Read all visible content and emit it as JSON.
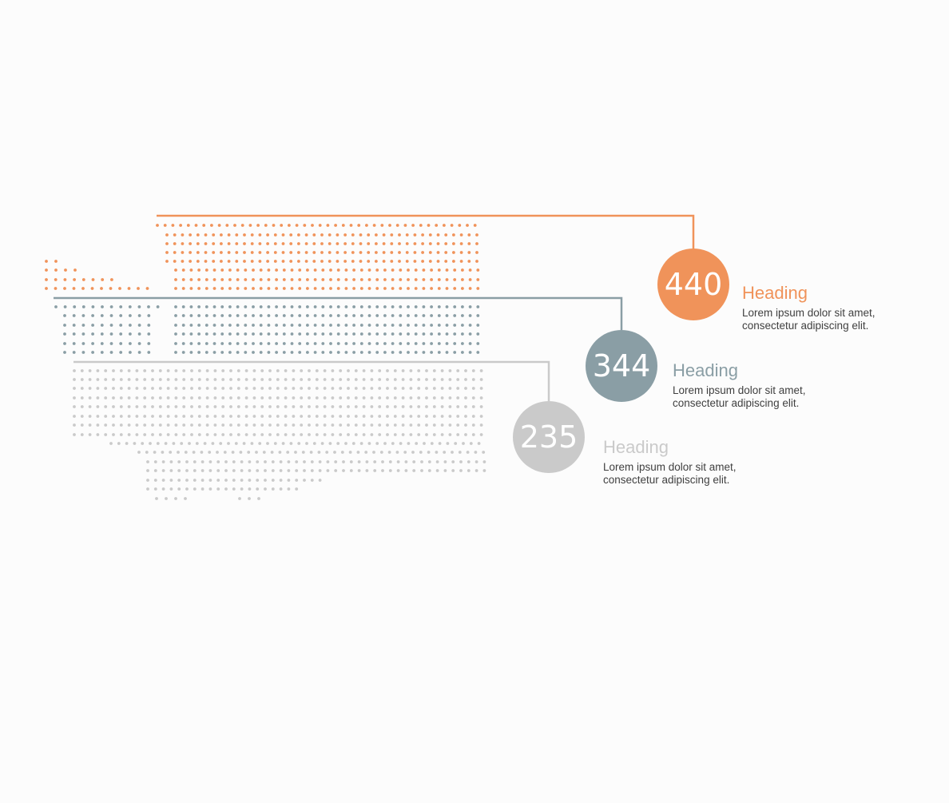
{
  "items": [
    {
      "value": "440",
      "heading": "Heading",
      "description": "Lorem ipsum dolor sit amet,\nconsectetur adipiscing elit.",
      "color": "#f0935a"
    },
    {
      "value": "344",
      "heading": "Heading",
      "description": "Lorem ipsum dolor sit amet,\nconsectetur adipiscing elit.",
      "color": "#8a9ea5"
    },
    {
      "value": "235",
      "heading": "Heading",
      "description": "Lorem ipsum dolor sit amet,\nconsectetur adipiscing elit.",
      "color": "#cacaca"
    }
  ],
  "background_color": "#fcfcfc"
}
